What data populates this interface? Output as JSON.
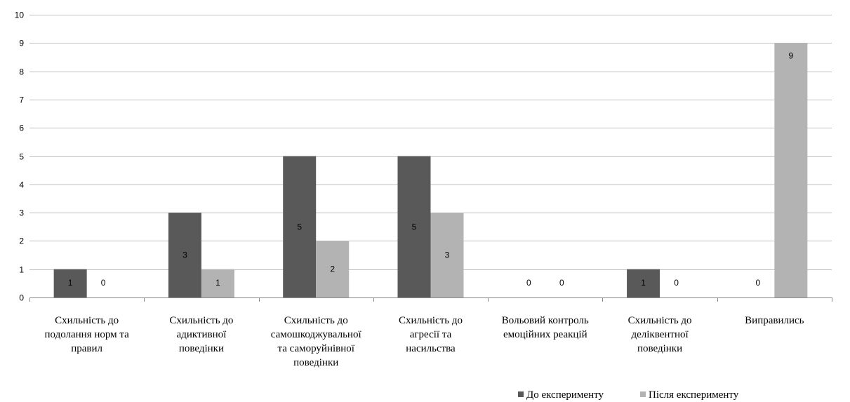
{
  "chart_data": {
    "type": "bar",
    "title": "",
    "xlabel": "",
    "ylabel": "",
    "ylim": [
      0,
      10
    ],
    "yticks": [
      0,
      1,
      2,
      3,
      4,
      5,
      6,
      7,
      8,
      9,
      10
    ],
    "grid": true,
    "legend_position": "bottom-right",
    "categories": [
      [
        "Схильність до",
        "подолання норм та",
        "правил"
      ],
      [
        "Схильність до",
        "адиктивної",
        "поведінки"
      ],
      [
        "Схильність до",
        "самошкоджувальної",
        "та саморуйнівної",
        "поведінки"
      ],
      [
        "Схильність до",
        "агресії та",
        "насильства"
      ],
      [
        "Вольовий контроль",
        "емоційних реакцій"
      ],
      [
        "Схильність до",
        "деліквентної",
        "поведінки"
      ],
      [
        "Виправились"
      ]
    ],
    "series": [
      {
        "name": "До експерименту",
        "color": "#595959",
        "values": [
          1,
          3,
          5,
          5,
          0,
          1,
          0
        ]
      },
      {
        "name": "Після експерименту",
        "color": "#b3b3b3",
        "values": [
          0,
          1,
          2,
          3,
          0,
          0,
          9
        ]
      }
    ]
  }
}
